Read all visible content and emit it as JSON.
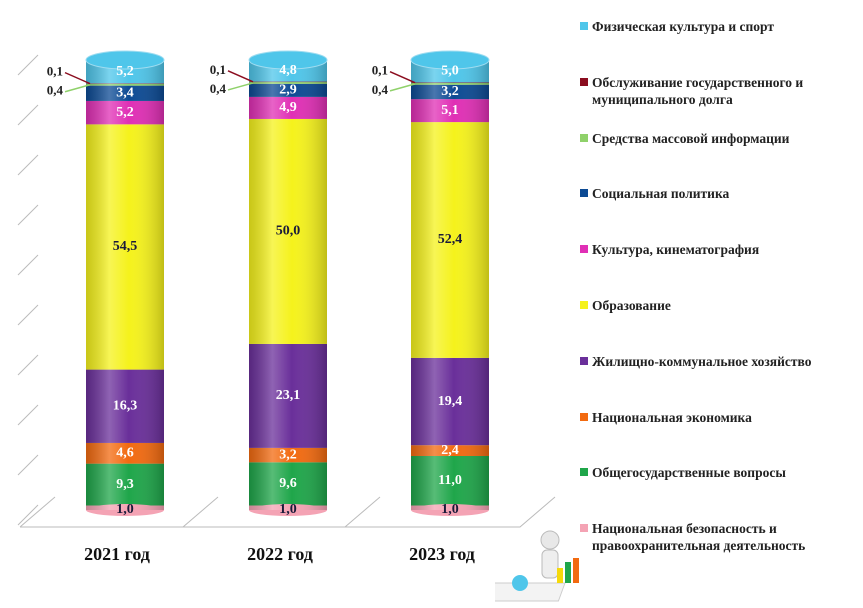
{
  "chart_data": {
    "type": "stacked-bar",
    "categories": [
      "2021 год",
      "2022 год",
      "2023 год"
    ],
    "ylim": [
      0,
      100
    ],
    "series": [
      {
        "name": "Национальная безопасность и правоохранительная деятельность",
        "color": "#f4a3b4",
        "values": [
          1.0,
          1.0,
          1.0
        ],
        "value_labels": [
          "1,0",
          "1,0",
          "1,0"
        ]
      },
      {
        "name": "Общегосударственные вопросы",
        "color": "#1fa64a",
        "values": [
          9.3,
          9.6,
          11.0
        ],
        "value_labels": [
          "9,3",
          "9,6",
          "11,0"
        ]
      },
      {
        "name": "Национальная экономика",
        "color": "#f26a10",
        "values": [
          4.6,
          3.2,
          2.4
        ],
        "value_labels": [
          "4,6",
          "3,2",
          "2,4"
        ]
      },
      {
        "name": "Жилищно-коммунальное хозяйство",
        "color": "#6a2f9a",
        "values": [
          16.3,
          23.1,
          19.4
        ],
        "value_labels": [
          "16,3",
          "23,1",
          "19,4"
        ]
      },
      {
        "name": "Образование",
        "color": "#f5f21c",
        "values": [
          54.5,
          50.0,
          52.4
        ],
        "value_labels": [
          "54,5",
          "50,0",
          "52,4"
        ]
      },
      {
        "name": "Культура, кинематография",
        "color": "#e02fb5",
        "values": [
          5.2,
          4.9,
          5.1
        ],
        "value_labels": [
          "5,2",
          "4,9",
          "5,1"
        ]
      },
      {
        "name": "Социальная политика",
        "color": "#0c4a94",
        "values": [
          3.4,
          2.9,
          3.2
        ],
        "value_labels": [
          "3,4",
          "2,9",
          "3,2"
        ]
      },
      {
        "name": "Средства массовой информации",
        "color": "#8fd16a",
        "values": [
          0.4,
          0.4,
          0.4
        ],
        "value_labels": [
          "0,4",
          "0,4",
          "0,4"
        ]
      },
      {
        "name": "Обслуживание государственного и муниципального долга",
        "color": "#8b0d1f",
        "values": [
          0.1,
          0.1,
          0.1
        ],
        "value_labels": [
          "0,1",
          "0,1",
          "0,1"
        ]
      },
      {
        "name": "Физическая культура и спорт",
        "color": "#4fc6ea",
        "values": [
          5.2,
          4.8,
          5.0
        ],
        "value_labels": [
          "5,2",
          "4,8",
          "5,0"
        ]
      }
    ]
  }
}
